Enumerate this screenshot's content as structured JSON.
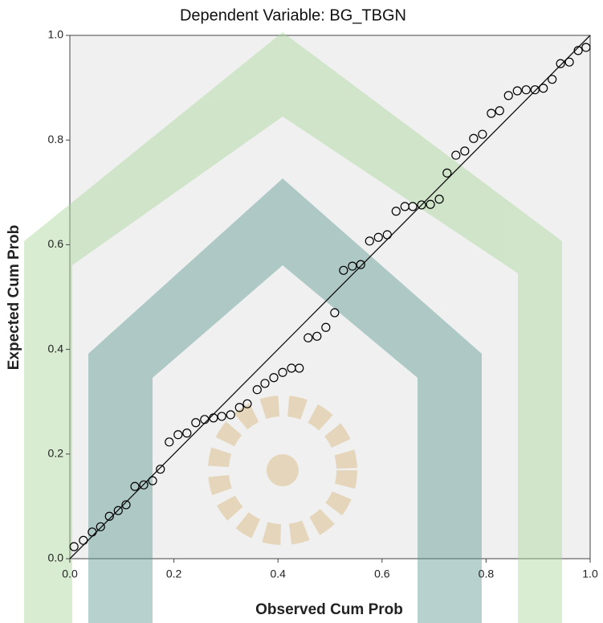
{
  "chart_data": {
    "type": "scatter",
    "title": "Dependent Variable: BG_TBGN",
    "x_label": "Observed Cum Prob",
    "y_label": "Expected Cum Prob",
    "x": [
      0.008,
      0.026,
      0.043,
      0.059,
      0.076,
      0.093,
      0.108,
      0.125,
      0.142,
      0.159,
      0.174,
      0.191,
      0.208,
      0.225,
      0.242,
      0.259,
      0.276,
      0.292,
      0.309,
      0.326,
      0.341,
      0.36,
      0.375,
      0.392,
      0.409,
      0.426,
      0.441,
      0.458,
      0.475,
      0.492,
      0.509,
      0.526,
      0.543,
      0.559,
      0.576,
      0.593,
      0.61,
      0.627,
      0.644,
      0.659,
      0.676,
      0.693,
      0.71,
      0.725,
      0.742,
      0.759,
      0.776,
      0.793,
      0.81,
      0.826,
      0.843,
      0.86,
      0.877,
      0.894,
      0.91,
      0.927,
      0.943,
      0.96,
      0.977,
      0.992
    ],
    "values": [
      0.023,
      0.035,
      0.051,
      0.061,
      0.081,
      0.092,
      0.103,
      0.138,
      0.141,
      0.149,
      0.171,
      0.223,
      0.237,
      0.24,
      0.26,
      0.266,
      0.269,
      0.272,
      0.275,
      0.289,
      0.296,
      0.323,
      0.335,
      0.346,
      0.356,
      0.364,
      0.364,
      0.422,
      0.425,
      0.442,
      0.47,
      0.551,
      0.559,
      0.562,
      0.607,
      0.614,
      0.619,
      0.664,
      0.673,
      0.673,
      0.676,
      0.677,
      0.687,
      0.737,
      0.771,
      0.779,
      0.803,
      0.811,
      0.851,
      0.856,
      0.885,
      0.894,
      0.896,
      0.896,
      0.899,
      0.916,
      0.946,
      0.949,
      0.971,
      0.977
    ],
    "xlim": [
      0,
      1
    ],
    "ylim": [
      0,
      1
    ],
    "xticks": [
      {
        "value": 0,
        "label": "0.0"
      },
      0.2,
      0.4,
      0.6,
      0.8,
      {
        "value": 1,
        "label": "1.0"
      }
    ],
    "yticks": [
      {
        "value": 0,
        "label": "0.0"
      },
      0.2,
      0.4,
      0.6,
      0.8,
      {
        "value": 1,
        "label": "1.0"
      }
    ],
    "reference_line": true,
    "color": "#000000"
  }
}
